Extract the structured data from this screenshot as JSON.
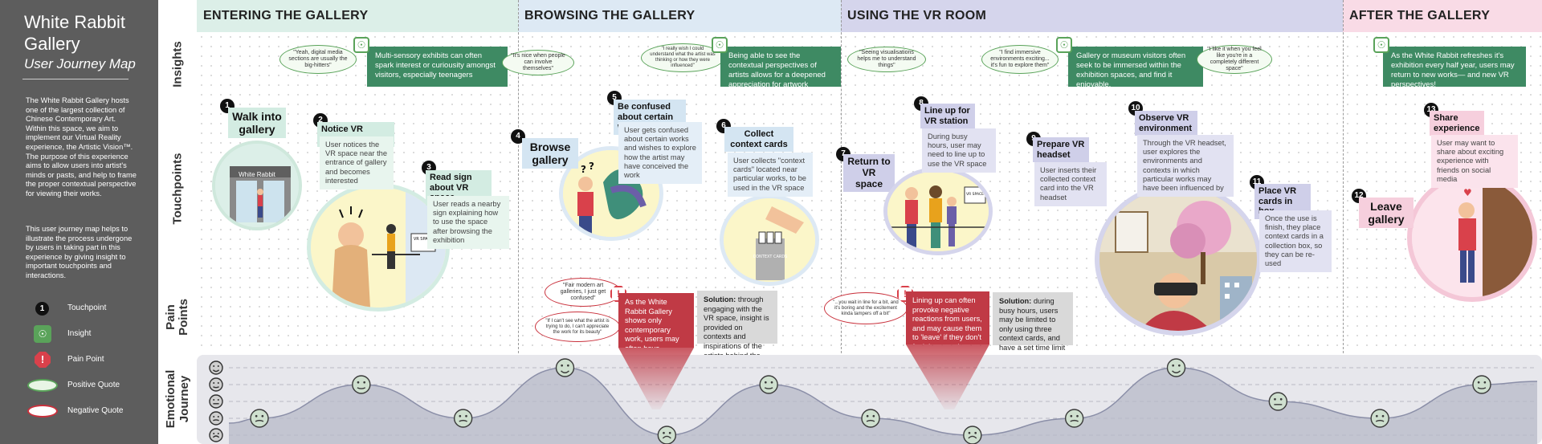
{
  "sidebar": {
    "title": "White Rabbit Gallery",
    "subtitle": "User Journey Map",
    "description": "The White Rabbit Gallery hosts one of the largest collection of Chinese Contemporary Art. Within this space, we aim to implement our Virtual Reality experience, the Artistic Vision™. The purpose of this experience aims to allow users into artist's minds or pasts, and help to frame the proper contextual perspective for viewing their works.",
    "description2": "This user journey map helps to illustrate the process undergone by users in taking part in this experience by giving insight to important touchpoints and interactions.",
    "legend": [
      {
        "label": "Touchpoint",
        "glyph": "1"
      },
      {
        "label": "Insight",
        "glyph": "☉"
      },
      {
        "label": "Pain Point",
        "glyph": "!"
      },
      {
        "label": "Positive Quote",
        "glyph": ""
      },
      {
        "label": "Negative Quote",
        "glyph": ""
      }
    ]
  },
  "rows": {
    "insights": "Insights",
    "touchpoints": "Touchpoints",
    "pain_points": "Pain Points",
    "emotional_journey": "Emotional Journey"
  },
  "phases": [
    {
      "title": "ENTERING THE GALLERY",
      "color": "#dcefe8"
    },
    {
      "title": "BROWSING THE GALLERY",
      "color": "#dde9f4"
    },
    {
      "title": "USING THE VR ROOM",
      "color": "#d5d5ec"
    },
    {
      "title": "AFTER THE GALLERY",
      "color": "#f9dbe6"
    }
  ],
  "insights": [
    {
      "text": "Multi-sensory exhibits can often spark interest or curiousity amongst visitors, especially teenagers"
    },
    {
      "text": "Being able to see the contextual perspectives of artists allows for a deepened appreciation for artwork"
    },
    {
      "text": "Gallery or museum visitors often seek to be immersed within the exhibition spaces, and find it enjoyable."
    },
    {
      "text": "As the White Rabbit refreshes it's exhibition every half year, users may return to new works— and new VR perspectives!"
    }
  ],
  "quotes": [
    {
      "text": "\"Yeah, digital media sections are usually the big-hitters\"",
      "kind": "positive"
    },
    {
      "text": "\"It's nice when people can involve themselves\"",
      "kind": "positive"
    },
    {
      "text": "\"I really wish I could understand what the artist was thinking or how they were influenced\"",
      "kind": "positive"
    },
    {
      "text": "\"Seeing visualisations helps me to understand things\"",
      "kind": "positive"
    },
    {
      "text": "\"I find immersive environments exciting... it's fun to explore them\"",
      "kind": "positive"
    },
    {
      "text": "\"I like it when you feel like you're in a completely different space\"",
      "kind": "positive"
    },
    {
      "text": "\"Fair modern art galleries, I just get confused\"",
      "kind": "negative"
    },
    {
      "text": "\"If I can't see what the artist is trying to do, I can't appreciate the work for its beauty\"",
      "kind": "negative"
    },
    {
      "text": "\"...you wait in line for a bit, and it's boring and the excitement kinda tampers off a bit\"",
      "kind": "negative"
    }
  ],
  "touchpoints": [
    {
      "num": "1",
      "title": "Walk into gallery",
      "desc": ""
    },
    {
      "num": "2",
      "title": "Notice VR space",
      "desc": "User notices the VR space near the entrance of gallery and becomes interested"
    },
    {
      "num": "3",
      "title": "Read sign about VR space",
      "desc": "User reads a nearby sign explaining how to use the space after browsing the exhibition"
    },
    {
      "num": "4",
      "title": "Browse gallery",
      "desc": ""
    },
    {
      "num": "5",
      "title": "Be confused about certain works",
      "desc": "User gets confused about certain works and wishes to explore how the artist may have conceived the work"
    },
    {
      "num": "6",
      "title": "Collect context cards",
      "desc": "User collects \"context cards\" located near particular works, to be used in the VR space"
    },
    {
      "num": "7",
      "title": "Return to VR space",
      "desc": ""
    },
    {
      "num": "8",
      "title": "Line up for VR station",
      "desc": "During busy hours, user may need to line up to use the VR space"
    },
    {
      "num": "9",
      "title": "Prepare VR headset",
      "desc": "User inserts their collected context card into the VR headset"
    },
    {
      "num": "10",
      "title": "Observe VR environment",
      "desc": "Through the VR headset, user explores the environments and contexts in which particular works may have been influenced by"
    },
    {
      "num": "11",
      "title": "Place VR cards in box",
      "desc": "Once the use is finish, they place context cards in a collection box, so they can be re-used"
    },
    {
      "num": "12",
      "title": "Leave gallery",
      "desc": ""
    },
    {
      "num": "13",
      "title": "Share experience",
      "desc": "User may want to share about exciting experience with friends on social media"
    }
  ],
  "scene_labels": {
    "storefront": "White Rabbit",
    "sign": "VR SPACE",
    "cards_box": "CONTEXT CARDS"
  },
  "pain_points": [
    {
      "pain": "As the White Rabbit Gallery shows only contemporary work, users may often have difficulty understanding them",
      "solution_label": "Solution:",
      "solution": "through engaging with the VR space, insight is provided on contexts and inspirations of the artists behind the works"
    },
    {
      "pain": "Lining up can often provoke negative reactions from users, and may cause them to 'leave' if they don't feel the experience justifies the wait",
      "solution_label": "Solution:",
      "solution": "during busy hours, users may be limited to only using three context cards, and have a set time limit"
    }
  ],
  "emotion_colors": {
    "positive": "#5aa35a",
    "negative": "#c9313c",
    "curve": "#8b8fa8"
  },
  "emotion_scale_levels": 5,
  "emotion_points": [
    {
      "step": 1,
      "level": 2
    },
    {
      "step": 2,
      "level": 4
    },
    {
      "step": 3,
      "level": 2
    },
    {
      "step": 4,
      "level": 5
    },
    {
      "step": 5,
      "level": 1
    },
    {
      "step": 6,
      "level": 4
    },
    {
      "step": 7,
      "level": 2
    },
    {
      "step": 8,
      "level": 1
    },
    {
      "step": 9,
      "level": 2
    },
    {
      "step": 10,
      "level": 5
    },
    {
      "step": 11,
      "level": 3
    },
    {
      "step": 12,
      "level": 2
    },
    {
      "step": 13,
      "level": 4
    }
  ]
}
